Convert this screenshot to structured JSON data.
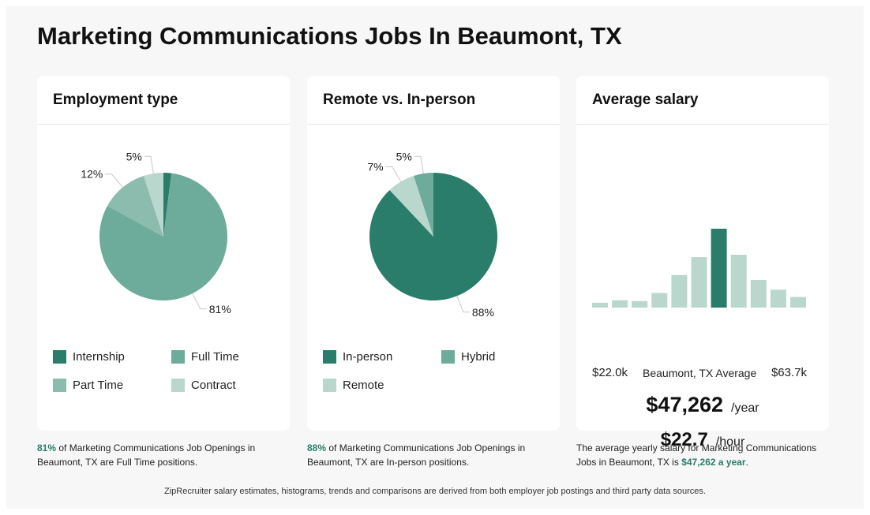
{
  "title": "Marketing Communications Jobs In Beaumont, TX",
  "colors": {
    "dark": "#2a7d6a",
    "mid": "#6dab9a",
    "light": "#8cbcad",
    "pale": "#b9d7cd",
    "accent": "#2a7d6a"
  },
  "cards": {
    "employment": {
      "heading": "Employment type"
    },
    "remote": {
      "heading": "Remote vs. In-person"
    },
    "salary": {
      "heading": "Average salary"
    }
  },
  "chart_data": [
    {
      "type": "pie",
      "title": "Employment type",
      "slices": [
        {
          "label": "Internship",
          "value": 2,
          "color": "#2a7d6a"
        },
        {
          "label": "Full Time",
          "value": 81,
          "color": "#6dab9a"
        },
        {
          "label": "Part Time",
          "value": 12,
          "color": "#8cbcad"
        },
        {
          "label": "Contract",
          "value": 5,
          "color": "#b9d7cd"
        }
      ],
      "data_labels": [
        "81%",
        "12%",
        "5%"
      ],
      "legend": [
        "Internship",
        "Full Time",
        "Part Time",
        "Contract"
      ]
    },
    {
      "type": "pie",
      "title": "Remote vs. In-person",
      "slices": [
        {
          "label": "In-person",
          "value": 88,
          "color": "#2a7d6a"
        },
        {
          "label": "Remote",
          "value": 7,
          "color": "#b9d7cd"
        },
        {
          "label": "Hybrid",
          "value": 5,
          "color": "#6dab9a"
        }
      ],
      "data_labels": [
        "88%",
        "7%",
        "5%"
      ],
      "legend": [
        "In-person",
        "Hybrid",
        "Remote"
      ]
    },
    {
      "type": "bar",
      "title": "Average salary",
      "values": [
        6,
        9,
        8,
        18,
        40,
        62,
        97,
        65,
        34,
        22,
        13
      ],
      "highlight_index": 6,
      "min_label": "$22.0k",
      "max_label": "$63.7k",
      "center_label": "Beaumont, TX Average"
    }
  ],
  "salary": {
    "yearly": "$47,262",
    "yearly_unit": "/year",
    "hourly": "$22.7",
    "hourly_unit": "/hour"
  },
  "footers": {
    "employment": {
      "highlight": "81%",
      "text": " of Marketing Communications Job Openings in Beaumont, TX are Full Time positions."
    },
    "remote": {
      "highlight": "88%",
      "text": " of Marketing Communications Job Openings in Beaumont, TX are In-person positions."
    },
    "salary": {
      "text": "The average yearly salary for Marketing Communications Jobs in Beaumont, TX is ",
      "highlight": "$47,262 a year",
      "end": "."
    }
  },
  "note": "ZipRecruiter salary estimates, histograms, trends and comparisons are derived from both employer job postings and third party data sources."
}
